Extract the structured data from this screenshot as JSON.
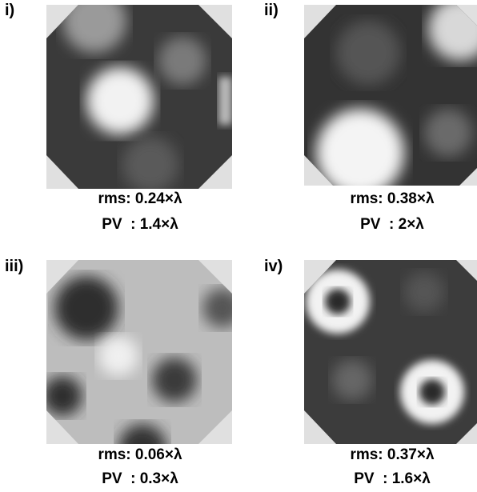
{
  "panels": [
    {
      "label": "i)",
      "rms": "rms: 0.24×λ",
      "pv": "PV  : 1.4×λ"
    },
    {
      "label": "ii)",
      "rms": "rms: 0.38×λ",
      "pv": "PV  : 2×λ"
    },
    {
      "label": "iii)",
      "rms": "rms: 0.06×λ",
      "pv": "PV  : 0.3×λ"
    },
    {
      "label": "iv)",
      "rms": "rms: 0.37×λ",
      "pv": "PV  : 1.6×λ"
    }
  ]
}
